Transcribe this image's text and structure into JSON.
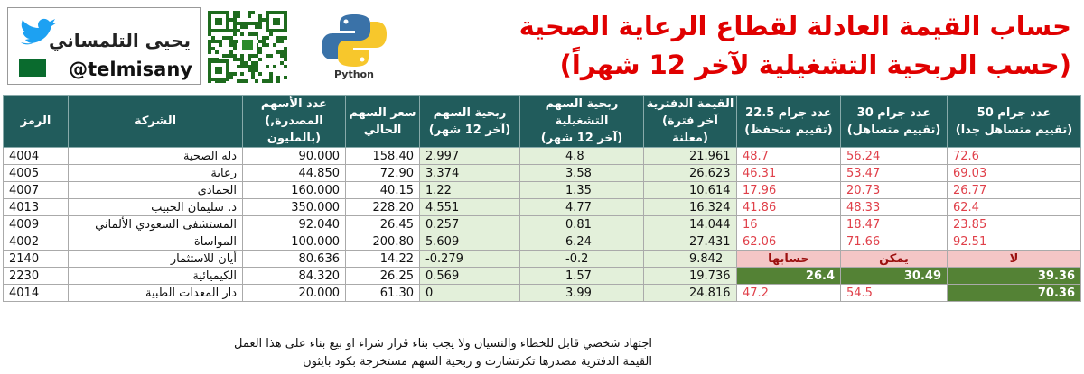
{
  "header": {
    "title_line1": "حساب القيمة العادلة لقطاع الرعاية الصحية",
    "title_line2": "(حسب الربحية التشغيلية لآخر 12 شهراً)"
  },
  "brand": {
    "name": "يحيى التلمساني",
    "handle": "@telmisany",
    "python_label": "Python"
  },
  "table": {
    "columns": [
      [
        "الرمز"
      ],
      [
        "الشركة"
      ],
      [
        "عدد الأسهم",
        "(المصدرة, بالمليون)"
      ],
      [
        "سعر السهم",
        "الحالي"
      ],
      [
        "ربحية السهم",
        "(آخر 12 شهر)"
      ],
      [
        "ربحية السهم التشغيلية",
        "(آخر 12 شهر)"
      ],
      [
        "القيمة  الدفترية",
        "(آخر فترة معلنة)"
      ],
      [
        "عدد جرام 22.5",
        "(تقييم متحفظ)"
      ],
      [
        "عدد جرام 30",
        "(تقييم متساهل)"
      ],
      [
        "عدد جرام 50",
        "(تقييم متساهل جدا)"
      ]
    ],
    "rows": [
      [
        "4004",
        "دله الصحية",
        "90.000",
        "158.40",
        "2.997",
        "4.8",
        "21.961",
        "48.7",
        "56.24",
        "72.6"
      ],
      [
        "4005",
        "رعاية",
        "44.850",
        "72.90",
        "3.374",
        "3.58",
        "26.623",
        "46.31",
        "53.47",
        "69.03"
      ],
      [
        "4007",
        "الحمادي",
        "160.000",
        "40.15",
        "1.22",
        "1.35",
        "10.614",
        "17.96",
        "20.73",
        "26.77"
      ],
      [
        "4013",
        "د. سليمان الحبيب",
        "350.000",
        "228.20",
        "4.551",
        "4.77",
        "16.324",
        "41.86",
        "48.33",
        "62.4"
      ],
      [
        "4009",
        "المستشفى السعودي الألماني",
        "92.040",
        "26.45",
        "0.257",
        "0.81",
        "14.044",
        "16",
        "18.47",
        "23.85"
      ],
      [
        "4002",
        "المواساة",
        "100.000",
        "200.80",
        "5.609",
        "6.24",
        "27.431",
        "62.06",
        "71.66",
        "92.51"
      ],
      [
        "2140",
        "أيان للاستثمار",
        "80.636",
        "14.22",
        "-0.279",
        "-0.2",
        "9.842",
        "حسابها",
        "يمكن",
        "لا"
      ],
      [
        "2230",
        "الكيميائية",
        "84.320",
        "26.25",
        "0.569",
        "1.57",
        "19.736",
        "26.4",
        "30.49",
        "39.36"
      ],
      [
        "4014",
        "دار المعدات الطبية",
        "20.000",
        "61.30",
        "0",
        "3.99",
        "24.816",
        "47.2",
        "54.5",
        "70.36"
      ]
    ]
  },
  "notes": [
    "اجتهاد شخصي قابل للخطاء والنسيان ولا يجب بناء قرار شراء او بيع بناء على هذا العمل",
    "القيمة الدفترية مصدرها تكرتشارت و ربحية السهم مستخرجة بكود بايثون"
  ]
}
